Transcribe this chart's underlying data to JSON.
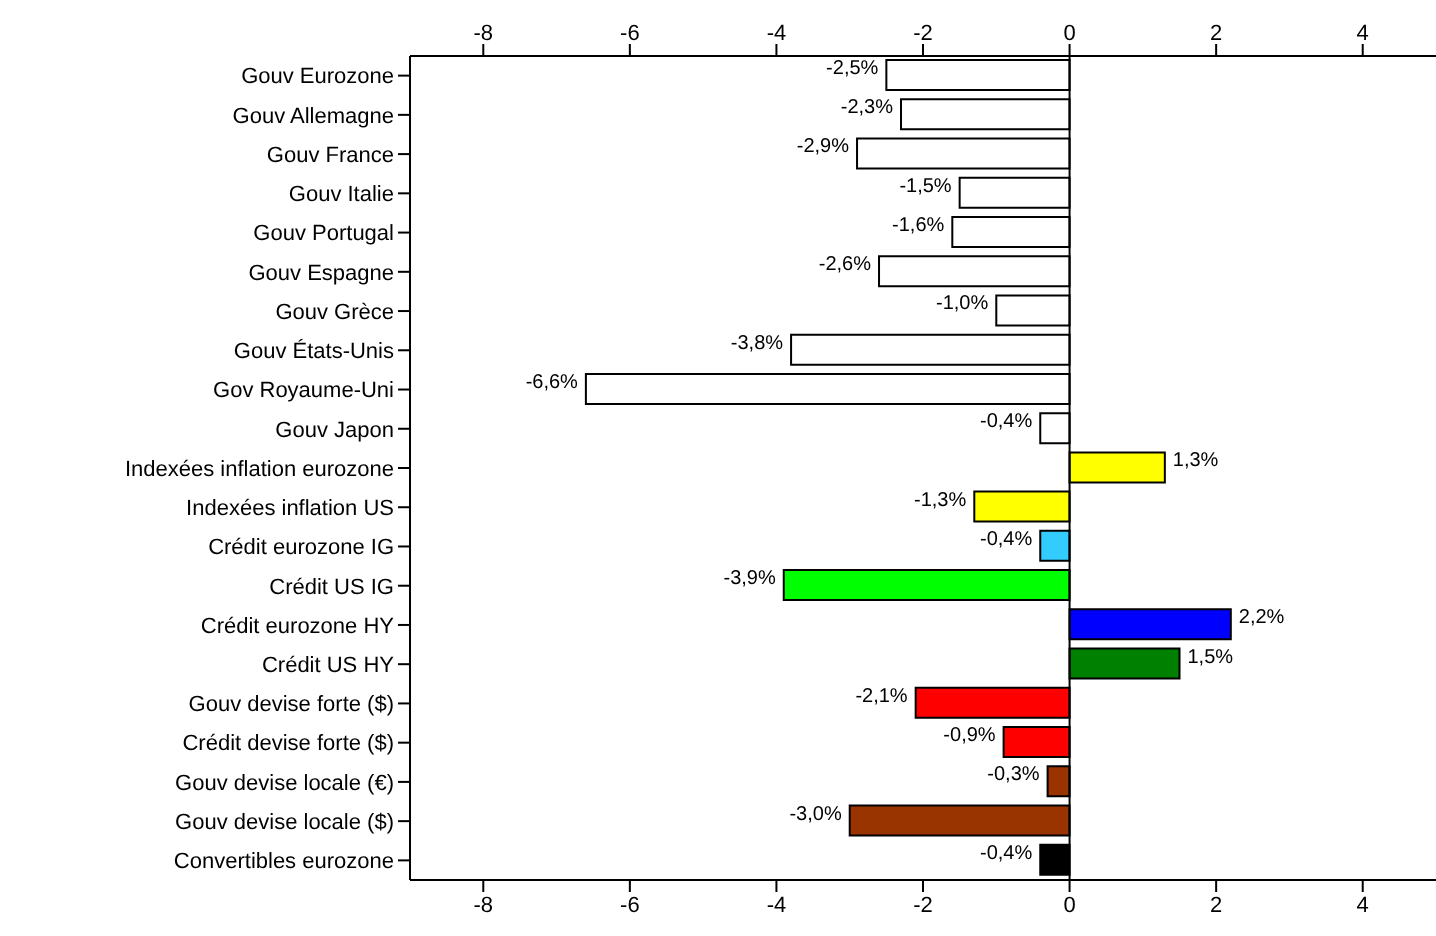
{
  "chart_data": {
    "type": "bar",
    "orientation": "horizontal",
    "categories": [
      "Gouv Eurozone",
      "Gouv Allemagne",
      "Gouv France",
      "Gouv Italie",
      "Gouv Portugal",
      "Gouv Espagne",
      "Gouv Grèce",
      "Gouv États-Unis",
      "Gov Royaume-Uni",
      "Gouv Japon",
      "Indexées inflation eurozone",
      "Indexées inflation US",
      "Crédit eurozone IG",
      "Crédit US IG",
      "Crédit eurozone HY",
      "Crédit US HY",
      "Gouv devise forte ($)",
      "Crédit devise forte ($)",
      "Gouv devise locale (€)",
      "Gouv devise locale ($)",
      "Convertibles eurozone"
    ],
    "values": [
      -2.5,
      -2.3,
      -2.9,
      -1.5,
      -1.6,
      -2.6,
      -1.0,
      -3.8,
      -6.6,
      -0.4,
      1.3,
      -1.3,
      -0.4,
      -3.9,
      2.2,
      1.5,
      -2.1,
      -0.9,
      -0.3,
      -3.0,
      -0.4
    ],
    "colors": [
      "#ffffff",
      "#ffffff",
      "#ffffff",
      "#ffffff",
      "#ffffff",
      "#ffffff",
      "#ffffff",
      "#ffffff",
      "#ffffff",
      "#ffffff",
      "#ffff00",
      "#ffff00",
      "#33ccff",
      "#00ff00",
      "#0000ff",
      "#008000",
      "#ff0000",
      "#ff0000",
      "#993300",
      "#993300",
      "#000000"
    ],
    "value_labels": [
      "-2,5%",
      "-2,3%",
      "-2,9%",
      "-1,5%",
      "-1,6%",
      "-2,6%",
      "-1,0%",
      "-3,8%",
      "-6,6%",
      "-0,4%",
      "1,3%",
      "-1,3%",
      "-0,4%",
      "-3,9%",
      "2,2%",
      "1,5%",
      "-2,1%",
      "-0,9%",
      "-0,3%",
      "-3,0%",
      "-0,4%"
    ],
    "xlim": [
      -9,
      5
    ],
    "xticks": [
      -8,
      -6,
      -4,
      -2,
      0,
      2,
      4
    ],
    "x2lim": [
      -9,
      5
    ],
    "x2ticks": [
      -8,
      -6,
      -4,
      -2,
      0,
      2,
      4
    ],
    "ref_lines": [
      {
        "axis": "x",
        "value": 0,
        "color": "#000000"
      }
    ],
    "grid": false,
    "legend": false
  }
}
